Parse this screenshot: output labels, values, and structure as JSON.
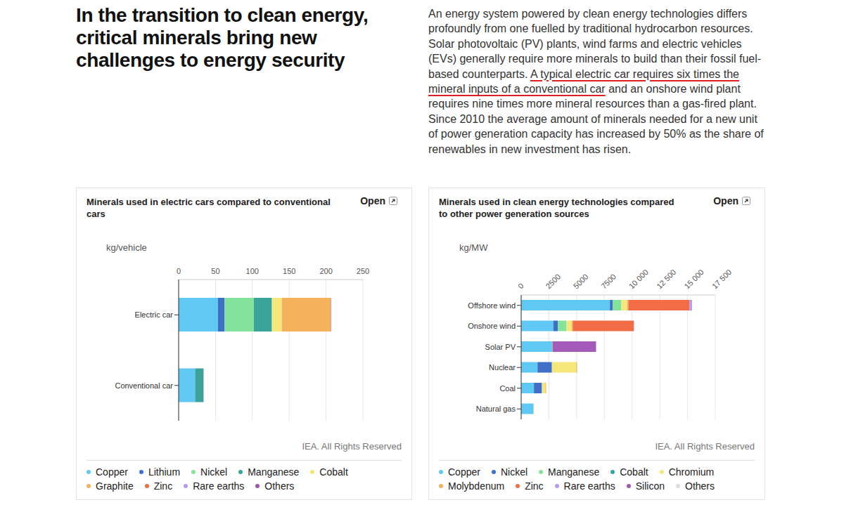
{
  "header": {
    "title": "In the transition to clean energy, critical minerals bring new challenges to energy security",
    "text_before": "An energy system powered by clean energy technologies differs profoundly from one fuelled by traditional hydrocarbon resources. Solar photovoltaic (PV) plants, wind farms and electric vehicles (EVs) generally require more minerals to build than their fossil fuel-based counterparts. ",
    "highlighted": "A typical electric car requires six times the mineral inputs of a conventional car",
    "text_after": " and an onshore wind plant requires nine times more mineral resources than a gas-fired plant. Since 2010 the average amount of minerals needed for a new unit of power generation capacity has increased by 50% as the share of renewables in new investment has risen."
  },
  "chart_data": [
    {
      "type": "bar",
      "title": "Minerals used in electric cars compared to conventional cars",
      "link": "Open",
      "xlabel": "kg/vehicle",
      "source": "IEA. All Rights Reserved",
      "orientation": "horizontal",
      "stacked": true,
      "grid": true,
      "legend": "bottom",
      "categories": [
        "Electric car",
        "Conventional car"
      ],
      "xlim": [
        0,
        250
      ],
      "xticks": [
        0,
        50,
        100,
        150,
        200,
        250
      ],
      "series": [
        {
          "name": "Copper",
          "color": "#5fc9f3",
          "values": [
            53.2,
            22.3
          ]
        },
        {
          "name": "Lithium",
          "color": "#3f6fc6",
          "values": [
            8.9,
            0
          ]
        },
        {
          "name": "Nickel",
          "color": "#84e39a",
          "values": [
            39.9,
            0
          ]
        },
        {
          "name": "Manganese",
          "color": "#3aa39a",
          "values": [
            24.5,
            11.2
          ]
        },
        {
          "name": "Cobalt",
          "color": "#f7e77a",
          "values": [
            13.3,
            0
          ]
        },
        {
          "name": "Graphite",
          "color": "#f5b25c",
          "values": [
            66.3,
            0
          ]
        },
        {
          "name": "Zinc",
          "color": "#f26d45",
          "values": [
            0.1,
            0.1
          ]
        },
        {
          "name": "Rare earths",
          "color": "#b59cf0",
          "values": [
            0.5,
            0
          ]
        },
        {
          "name": "Others",
          "color": "#9b59b6",
          "values": [
            0.3,
            0.3
          ]
        }
      ]
    },
    {
      "type": "bar",
      "title": "Minerals used in clean energy technologies compared to other power generation sources",
      "link": "Open",
      "xlabel": "kg/MW",
      "source": "IEA. All Rights Reserved",
      "orientation": "horizontal",
      "stacked": true,
      "grid": true,
      "legend": "bottom",
      "categories": [
        "Offshore wind",
        "Onshore wind",
        "Solar PV",
        "Nuclear",
        "Coal",
        "Natural gas"
      ],
      "xlim": [
        0,
        17500
      ],
      "xticks": [
        0,
        2500,
        5000,
        7500,
        {
          "value": 10000,
          "label": "10 000"
        },
        {
          "value": 12500,
          "label": "12 500"
        },
        {
          "value": 15000,
          "label": "15 000"
        },
        {
          "value": 17500,
          "label": "17 500"
        }
      ],
      "series": [
        {
          "name": "Copper",
          "color": "#5fc9f3",
          "values": [
            8000,
            2900,
            2822,
            1473,
            1150,
            1100
          ]
        },
        {
          "name": "Nickel",
          "color": "#3f6fc6",
          "values": [
            240,
            404,
            0,
            1297,
            721,
            16
          ]
        },
        {
          "name": "Manganese",
          "color": "#84e39a",
          "values": [
            790,
            780,
            0,
            0,
            0,
            0
          ]
        },
        {
          "name": "Cobalt",
          "color": "#3aa39a",
          "values": [
            0,
            0,
            0,
            0,
            0,
            0
          ]
        },
        {
          "name": "Chromium",
          "color": "#f7e77a",
          "values": [
            525,
            470,
            0,
            2190,
            308,
            48
          ]
        },
        {
          "name": "Molybdenum",
          "color": "#f5b25c",
          "values": [
            109,
            99,
            0,
            70,
            66,
            0
          ]
        },
        {
          "name": "Zinc",
          "color": "#f26d45",
          "values": [
            5500,
            5500,
            30,
            0,
            0,
            0
          ]
        },
        {
          "name": "Rare earths",
          "color": "#b59cf0",
          "values": [
            239,
            14,
            0,
            0,
            0,
            0
          ]
        },
        {
          "name": "Silicon",
          "color": "#a45ab8",
          "values": [
            0,
            0,
            3900,
            0,
            0,
            0
          ]
        },
        {
          "name": "Others",
          "color": "#dddddd",
          "values": [
            0,
            0,
            0,
            50,
            0,
            0
          ]
        }
      ]
    }
  ]
}
